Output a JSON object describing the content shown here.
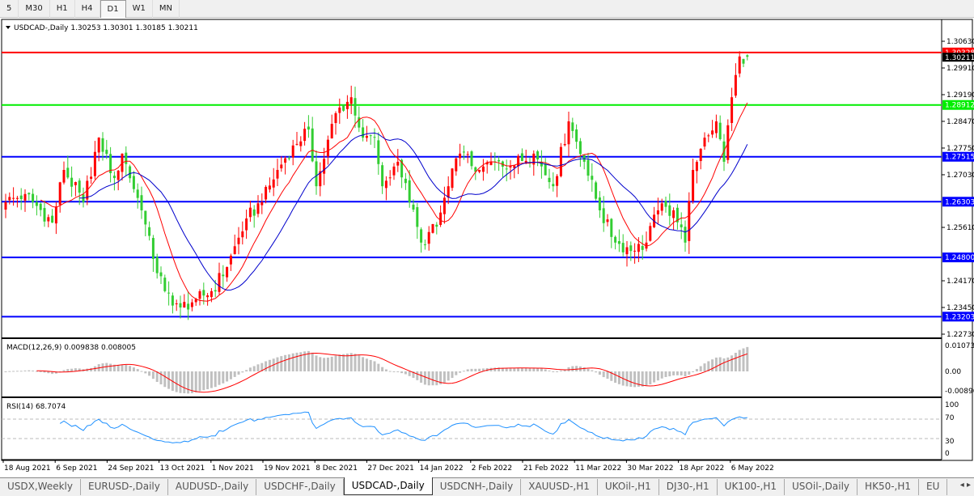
{
  "toolbar": {
    "timeframes": [
      {
        "label": "5",
        "active": false
      },
      {
        "label": "M30",
        "active": false
      },
      {
        "label": "H1",
        "active": false
      },
      {
        "label": "H4",
        "active": false
      },
      {
        "label": "D1",
        "active": true
      },
      {
        "label": "W1",
        "active": false
      },
      {
        "label": "MN",
        "active": false
      }
    ]
  },
  "chart": {
    "symbol_header": "USDCAD-,Daily  1.30253 1.30301 1.30185 1.30211",
    "bull_color": "#ff0000",
    "bear_color": "#32cd32",
    "price_axis": [
      "1.30630",
      "1.29910",
      "1.29190",
      "1.28470",
      "1.27750",
      "1.27030",
      "1.25610",
      "1.24170",
      "1.23450",
      "1.22730"
    ],
    "price_range": [
      1.2273,
      1.3063
    ],
    "current_price": "1.30211",
    "levels": [
      {
        "price": 1.30328,
        "label": "1.30328",
        "color": "#ff0000"
      },
      {
        "price": 1.28912,
        "label": "1.28912",
        "color": "#00ee00"
      },
      {
        "price": 1.27515,
        "label": "1.27515",
        "color": "#0000ff"
      },
      {
        "price": 1.26303,
        "label": "1.26303",
        "color": "#0000ff"
      },
      {
        "price": 1.248,
        "label": "1.24800",
        "color": "#0000ff"
      },
      {
        "price": 1.23203,
        "label": "1.23203",
        "color": "#0000ff"
      }
    ],
    "ma_colors": [
      "#ff0000",
      "#0000cc"
    ],
    "closes": [
      [
        "2021-08-18",
        1.2629
      ],
      [
        "2021-08-25",
        1.2651
      ],
      [
        "2021-09-03",
        1.2574
      ],
      [
        "2021-09-08",
        1.2716
      ],
      [
        "2021-09-15",
        1.2629
      ],
      [
        "2021-09-21",
        1.2803
      ],
      [
        "2021-09-27",
        1.2694
      ],
      [
        "2021-09-29",
        1.276
      ],
      [
        "2021-10-06",
        1.2607
      ],
      [
        "2021-10-11",
        1.2476
      ],
      [
        "2021-10-14",
        1.2389
      ],
      [
        "2021-10-20",
        1.2345
      ],
      [
        "2021-10-26",
        1.2367
      ],
      [
        "2021-11-01",
        1.2389
      ],
      [
        "2021-11-05",
        1.2454
      ],
      [
        "2021-11-12",
        1.2585
      ],
      [
        "2021-11-18",
        1.2629
      ],
      [
        "2021-11-24",
        1.2716
      ],
      [
        "2021-11-30",
        1.2782
      ],
      [
        "2021-12-06",
        1.2825
      ],
      [
        "2021-12-08",
        1.2672
      ],
      [
        "2021-12-15",
        1.2869
      ],
      [
        "2021-12-21",
        1.2912
      ],
      [
        "2021-12-24",
        1.2803
      ],
      [
        "2021-12-29",
        1.2803
      ],
      [
        "2021-12-31",
        1.2672
      ],
      [
        "2022-01-06",
        1.2738
      ],
      [
        "2022-01-11",
        1.2629
      ],
      [
        "2022-01-14",
        1.252
      ],
      [
        "2022-01-20",
        1.2563
      ],
      [
        "2022-01-25",
        1.2672
      ],
      [
        "2022-01-28",
        1.276
      ],
      [
        "2022-02-04",
        1.2716
      ],
      [
        "2022-02-10",
        1.2738
      ],
      [
        "2022-02-16",
        1.2727
      ],
      [
        "2022-02-24",
        1.276
      ],
      [
        "2022-03-03",
        1.2672
      ],
      [
        "2022-03-09",
        1.2847
      ],
      [
        "2022-03-15",
        1.2738
      ],
      [
        "2022-03-21",
        1.2607
      ],
      [
        "2022-03-25",
        1.252
      ],
      [
        "2022-04-01",
        1.2498
      ],
      [
        "2022-04-06",
        1.252
      ],
      [
        "2022-04-11",
        1.2607
      ],
      [
        "2022-04-15",
        1.2607
      ],
      [
        "2022-04-20",
        1.252
      ],
      [
        "2022-04-22",
        1.2716
      ],
      [
        "2022-04-27",
        1.2803
      ],
      [
        "2022-05-02",
        1.2847
      ],
      [
        "2022-05-04",
        1.2738
      ],
      [
        "2022-05-06",
        1.2912
      ],
      [
        "2022-05-10",
        1.3022
      ],
      [
        "2022-05-12",
        1.30211
      ]
    ]
  },
  "macd": {
    "label": "MACD(12,26,9) 0.009838 0.008005",
    "axis": [
      "0.010733",
      "0.00",
      "-0.008966"
    ],
    "hist_color": "#c0c0c0",
    "signal_color": "#ff0000"
  },
  "rsi": {
    "label": "RSI(14) 68.7074",
    "axis": [
      "100",
      "70",
      "30",
      "0"
    ],
    "line_color": "#1e90ff"
  },
  "date_axis": [
    "18 Aug 2021",
    "6 Sep 2021",
    "24 Sep 2021",
    "13 Oct 2021",
    "1 Nov 2021",
    "19 Nov 2021",
    "8 Dec 2021",
    "27 Dec 2021",
    "14 Jan 2022",
    "2 Feb 2022",
    "21 Feb 2022",
    "11 Mar 2022",
    "30 Mar 2022",
    "18 Apr 2022",
    "6 May 2022"
  ],
  "tabs": [
    {
      "label": "USDX,Weekly",
      "active": false
    },
    {
      "label": "EURUSD-,Daily",
      "active": false
    },
    {
      "label": "AUDUSD-,Daily",
      "active": false
    },
    {
      "label": "USDCHF-,Daily",
      "active": false
    },
    {
      "label": "USDCAD-,Daily",
      "active": true
    },
    {
      "label": "USDCNH-,Daily",
      "active": false
    },
    {
      "label": "XAUUSD-,H1",
      "active": false
    },
    {
      "label": "UKOil-,H1",
      "active": false
    },
    {
      "label": "DJ30-,H1",
      "active": false
    },
    {
      "label": "UK100-,H1",
      "active": false
    },
    {
      "label": "USOil-,Daily",
      "active": false
    },
    {
      "label": "HK50-,H1",
      "active": false
    },
    {
      "label": "EU",
      "active": false
    }
  ]
}
